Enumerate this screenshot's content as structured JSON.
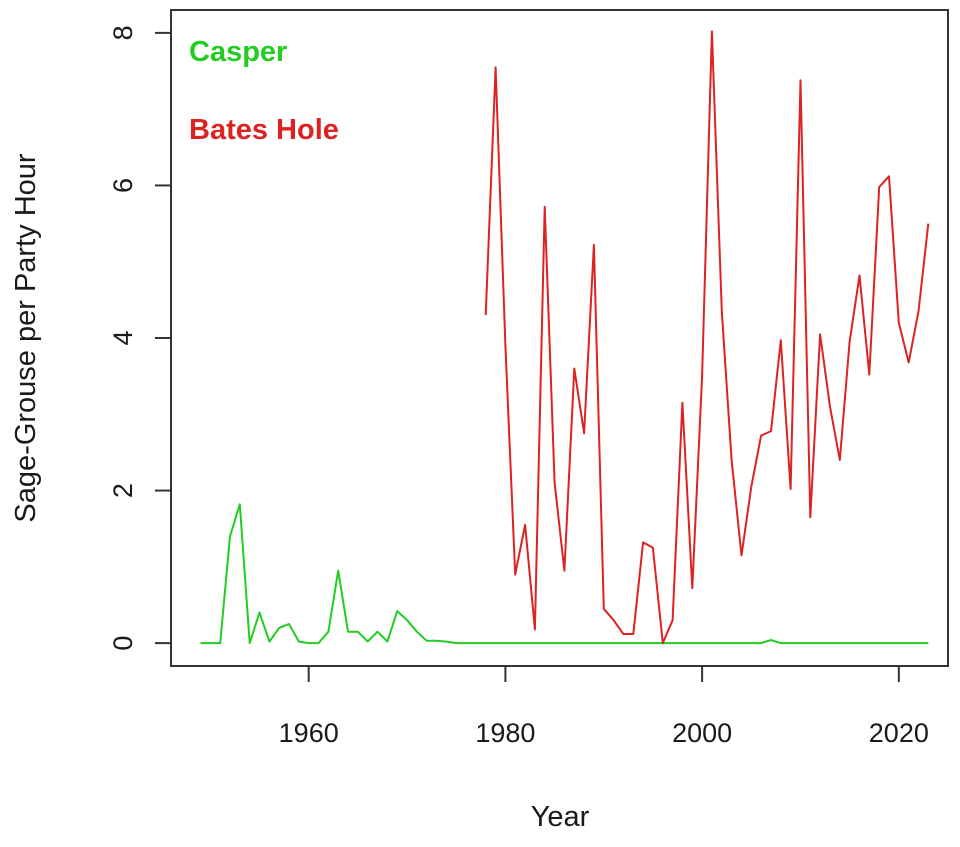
{
  "chart_data": {
    "type": "line",
    "xlabel": "Year",
    "ylabel": "Sage-Grouse per Party Hour",
    "xlim": [
      1946,
      2025
    ],
    "ylim": [
      -0.3,
      8.3
    ],
    "x_ticks": [
      1960,
      1980,
      2000,
      2020
    ],
    "y_ticks": [
      0,
      2,
      4,
      6,
      8
    ],
    "x_tick_labels": [
      "1960",
      "1980",
      "2000",
      "2020"
    ],
    "y_tick_labels": [
      "0",
      "2",
      "4",
      "6",
      "8"
    ],
    "grid": false,
    "legend_position": "top-left",
    "series": [
      {
        "name": "Casper",
        "color": "#22cc22",
        "points": [
          [
            1949,
            0
          ],
          [
            1950,
            0
          ],
          [
            1951,
            0
          ],
          [
            1952,
            1.4
          ],
          [
            1953,
            1.82
          ],
          [
            1954,
            0
          ],
          [
            1955,
            0.4
          ],
          [
            1956,
            0.02
          ],
          [
            1957,
            0.2
          ],
          [
            1958,
            0.25
          ],
          [
            1959,
            0.02
          ],
          [
            1960,
            0
          ],
          [
            1961,
            0
          ],
          [
            1962,
            0.15
          ],
          [
            1963,
            0.95
          ],
          [
            1964,
            0.15
          ],
          [
            1965,
            0.15
          ],
          [
            1966,
            0.02
          ],
          [
            1967,
            0.15
          ],
          [
            1968,
            0.02
          ],
          [
            1969,
            0.42
          ],
          [
            1970,
            0.3
          ],
          [
            1971,
            0.15
          ],
          [
            1972,
            0.03
          ],
          [
            1973,
            0.03
          ],
          [
            1974,
            0.02
          ],
          [
            1975,
            0
          ],
          [
            1980,
            0
          ],
          [
            1990,
            0
          ],
          [
            2000,
            0
          ],
          [
            2006,
            0
          ],
          [
            2007,
            0.04
          ],
          [
            2008,
            0
          ],
          [
            2015,
            0
          ],
          [
            2023,
            0
          ]
        ]
      },
      {
        "name": "Bates Hole",
        "color": "#dd2222",
        "points": [
          [
            1978,
            4.3
          ],
          [
            1979,
            7.55
          ],
          [
            1980,
            3.9
          ],
          [
            1981,
            0.9
          ],
          [
            1982,
            1.55
          ],
          [
            1983,
            0.18
          ],
          [
            1984,
            5.72
          ],
          [
            1985,
            2.1
          ],
          [
            1986,
            0.95
          ],
          [
            1987,
            3.6
          ],
          [
            1988,
            2.75
          ],
          [
            1989,
            5.22
          ],
          [
            1990,
            0.45
          ],
          [
            1991,
            0.3
          ],
          [
            1992,
            0.12
          ],
          [
            1993,
            0.12
          ],
          [
            1994,
            1.32
          ],
          [
            1995,
            1.25
          ],
          [
            1996,
            0
          ],
          [
            1997,
            0.3
          ],
          [
            1998,
            3.15
          ],
          [
            1999,
            0.72
          ],
          [
            2000,
            3.5
          ],
          [
            2001,
            8.02
          ],
          [
            2002,
            4.35
          ],
          [
            2003,
            2.4
          ],
          [
            2004,
            1.15
          ],
          [
            2005,
            2.05
          ],
          [
            2006,
            2.72
          ],
          [
            2007,
            2.78
          ],
          [
            2008,
            3.97
          ],
          [
            2009,
            2.02
          ],
          [
            2010,
            7.38
          ],
          [
            2011,
            1.65
          ],
          [
            2012,
            4.05
          ],
          [
            2013,
            3.1
          ],
          [
            2014,
            2.4
          ],
          [
            2015,
            3.95
          ],
          [
            2016,
            4.82
          ],
          [
            2017,
            3.52
          ],
          [
            2018,
            5.98
          ],
          [
            2019,
            6.12
          ],
          [
            2020,
            4.2
          ],
          [
            2021,
            3.68
          ],
          [
            2022,
            4.35
          ],
          [
            2023,
            5.5
          ]
        ]
      }
    ]
  }
}
